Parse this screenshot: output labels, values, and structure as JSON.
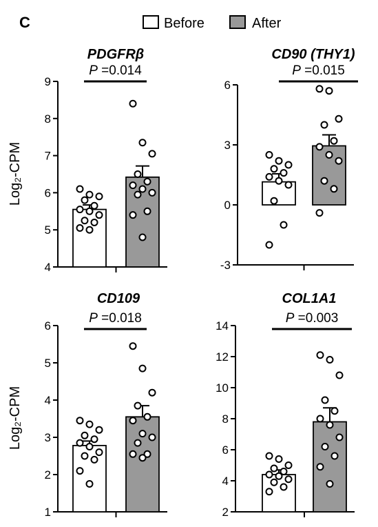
{
  "panel_label": "C",
  "legend": {
    "before_label": "Before",
    "after_label": "After",
    "before_color": "#ffffff",
    "after_color": "#999999"
  },
  "chart_data": [
    {
      "type": "bar",
      "title": "PDGFRβ",
      "ylabel": "Log₂-CPM",
      "ylim": [
        4,
        9
      ],
      "yticks": [
        4,
        5,
        6,
        7,
        8,
        9
      ],
      "categories": [
        "Before",
        "After"
      ],
      "values": [
        5.55,
        6.42
      ],
      "sem": [
        0.12,
        0.3
      ],
      "points": [
        [
          6.1,
          5.95,
          5.9,
          5.8,
          5.65,
          5.55,
          5.5,
          5.4,
          5.25,
          5.2,
          5.05,
          5.0
        ],
        [
          8.4,
          7.35,
          7.05,
          6.5,
          6.3,
          6.2,
          6.1,
          6.0,
          5.95,
          5.5,
          5.4,
          4.8
        ]
      ],
      "p_prefix": "P",
      "p_value": " =0.014"
    },
    {
      "type": "bar",
      "title": "CD90 (THY1)",
      "ylabel": "",
      "ylim": [
        -3,
        6
      ],
      "yticks": [
        -3,
        0,
        3,
        6
      ],
      "categories": [
        "Before",
        "After"
      ],
      "values": [
        1.15,
        2.95
      ],
      "sem": [
        0.4,
        0.55
      ],
      "points": [
        [
          2.5,
          2.2,
          2.0,
          1.8,
          1.6,
          1.4,
          1.2,
          1.0,
          0.2,
          -1.0,
          -2.0
        ],
        [
          5.8,
          5.7,
          4.3,
          4.0,
          3.2,
          2.9,
          2.5,
          2.2,
          1.2,
          0.8,
          -0.4
        ]
      ],
      "p_prefix": "P",
      "p_value": " =0.015"
    },
    {
      "type": "bar",
      "title": "CD109",
      "ylabel": "Log₂-CPM",
      "ylim": [
        1,
        6
      ],
      "yticks": [
        1,
        2,
        3,
        4,
        5,
        6
      ],
      "categories": [
        "Before",
        "After"
      ],
      "values": [
        2.78,
        3.55
      ],
      "sem": [
        0.12,
        0.3
      ],
      "points": [
        [
          3.45,
          3.35,
          3.2,
          3.05,
          2.95,
          2.85,
          2.75,
          2.6,
          2.5,
          2.4,
          2.1,
          1.75
        ],
        [
          5.45,
          4.85,
          4.2,
          3.85,
          3.55,
          3.45,
          3.1,
          3.0,
          2.85,
          2.55,
          2.55,
          2.45
        ]
      ],
      "p_prefix": "P",
      "p_value": " =0.018"
    },
    {
      "type": "bar",
      "title": "COL1A1",
      "ylabel": "",
      "ylim": [
        2,
        14
      ],
      "yticks": [
        2,
        4,
        6,
        8,
        10,
        12,
        14
      ],
      "categories": [
        "Before",
        "After"
      ],
      "values": [
        4.4,
        7.8
      ],
      "sem": [
        0.3,
        0.9
      ],
      "points": [
        [
          5.6,
          5.4,
          5.0,
          4.8,
          4.6,
          4.4,
          4.3,
          4.1,
          3.9,
          3.6,
          3.3
        ],
        [
          12.1,
          11.8,
          10.8,
          9.2,
          8.5,
          8.0,
          7.6,
          6.8,
          6.2,
          5.6,
          4.9,
          3.8
        ]
      ],
      "p_prefix": "P",
      "p_value": " =0.003"
    }
  ]
}
